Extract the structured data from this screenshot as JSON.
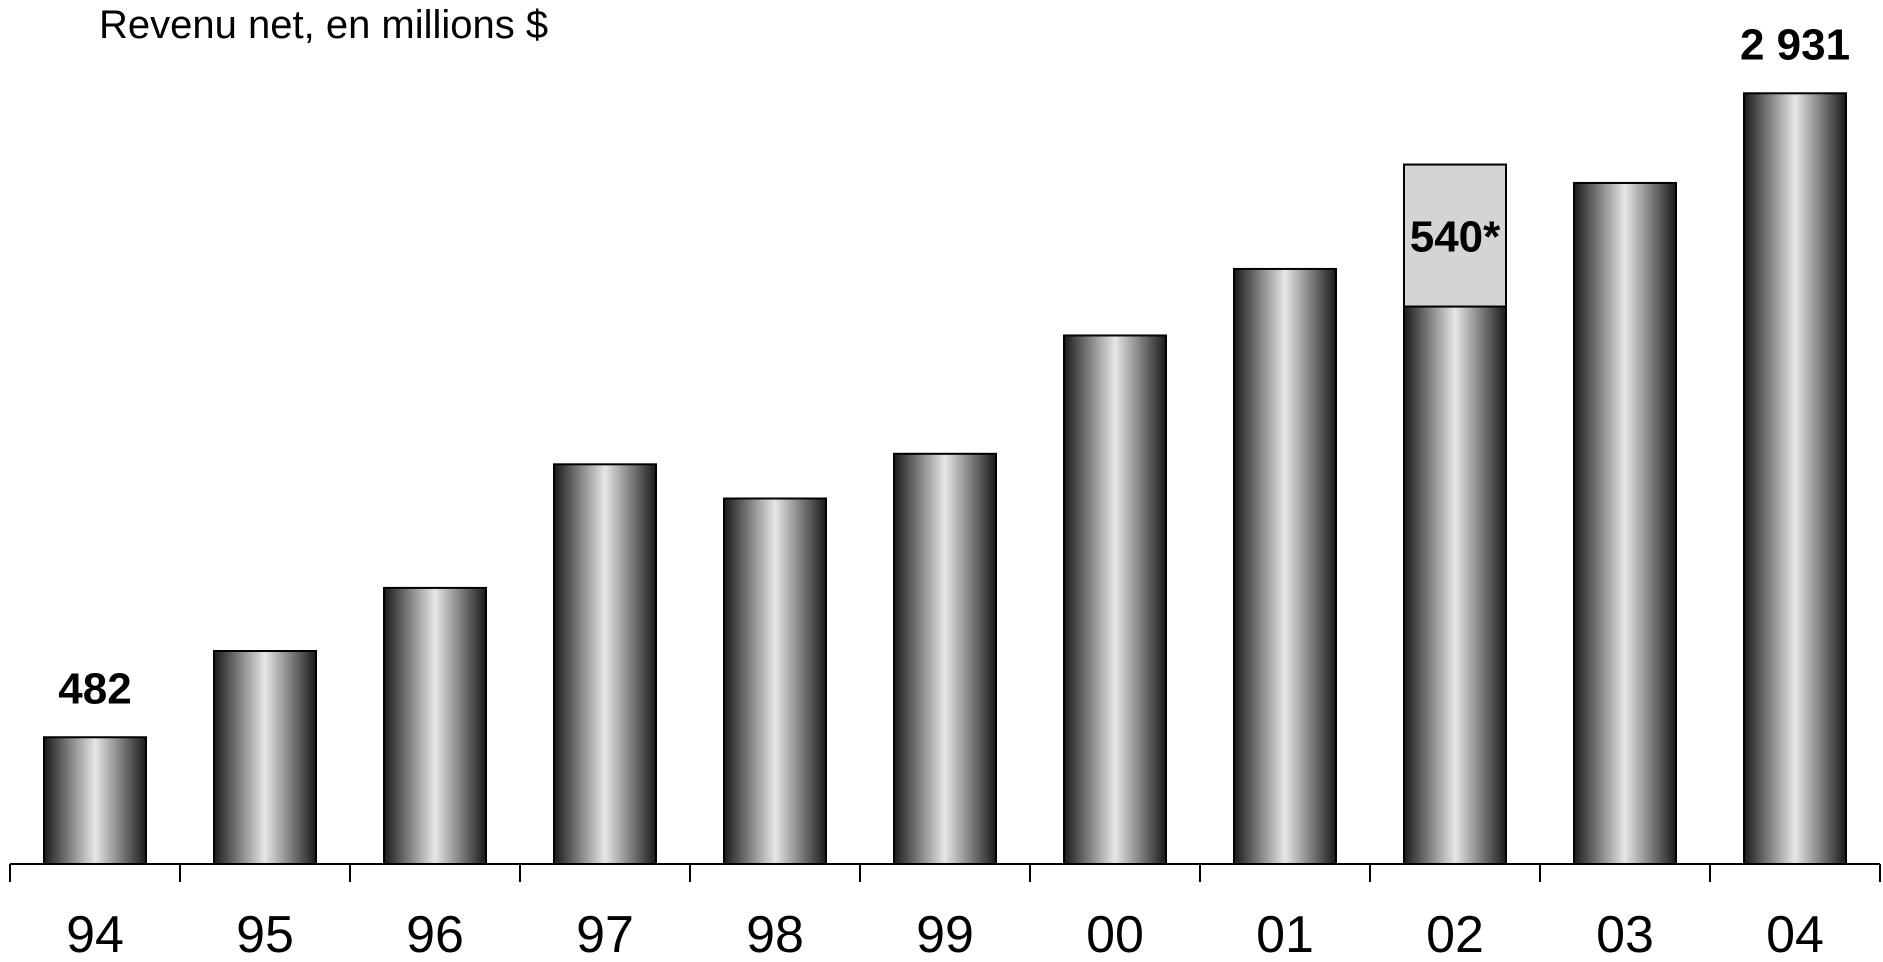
{
  "chart_data": {
    "type": "bar",
    "title": "Revenu net, en millions $",
    "categories": [
      "94",
      "95",
      "96",
      "97",
      "98",
      "99",
      "00",
      "01",
      "02",
      "03",
      "04"
    ],
    "series": [
      {
        "values": [
          482,
          810,
          1050,
          1520,
          1390,
          1560,
          2010,
          2263,
          2120,
          2590,
          2931
        ]
      }
    ],
    "stacked_segment": {
      "category": "02",
      "value": 540,
      "label": "540*",
      "color": "#d4d4d4"
    },
    "data_labels": [
      {
        "category": "94",
        "text": "482"
      },
      {
        "category": "04",
        "text": "2 931"
      }
    ],
    "ylim": [
      0,
      3050
    ],
    "grid": false,
    "bar_style": "metallic-gradient",
    "colors": {
      "bar_dark": "#1a1a1a",
      "bar_light": "#e6e6e6",
      "axis": "#000000",
      "stack": "#d4d4d4"
    }
  }
}
